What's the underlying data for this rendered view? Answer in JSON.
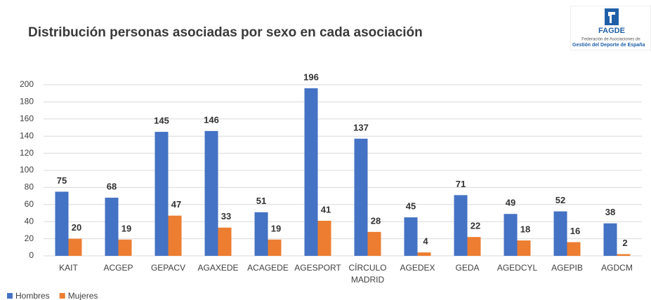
{
  "chart_data": {
    "type": "bar",
    "title": "Distribución personas asociadas por sexo en cada asociación",
    "categories": [
      "KAIT",
      "ACGEP",
      "GEPACV",
      "AGAXEDE",
      "ACAGEDE",
      "AGESPORT",
      "CÍRCULO MADRID",
      "AGEDEX",
      "GEDA",
      "AGEDCYL",
      "AGEPIB",
      "AGDCM"
    ],
    "series": [
      {
        "name": "Hombres",
        "color": "#4472c4",
        "values": [
          75,
          68,
          145,
          146,
          51,
          196,
          137,
          45,
          71,
          49,
          52,
          38
        ]
      },
      {
        "name": "Mujeres",
        "color": "#ed7d31",
        "values": [
          20,
          19,
          47,
          33,
          19,
          41,
          28,
          4,
          22,
          18,
          16,
          2
        ]
      }
    ],
    "ylim": [
      0,
      200
    ],
    "yticks": [
      0,
      20,
      40,
      60,
      80,
      100,
      120,
      140,
      160,
      180,
      200
    ],
    "grid": true,
    "legend": "bottom-left"
  },
  "logo": {
    "name": "FAGDE",
    "line1": "Federación de Asociaciones de",
    "line2": "Gestión del Deporte de España"
  }
}
